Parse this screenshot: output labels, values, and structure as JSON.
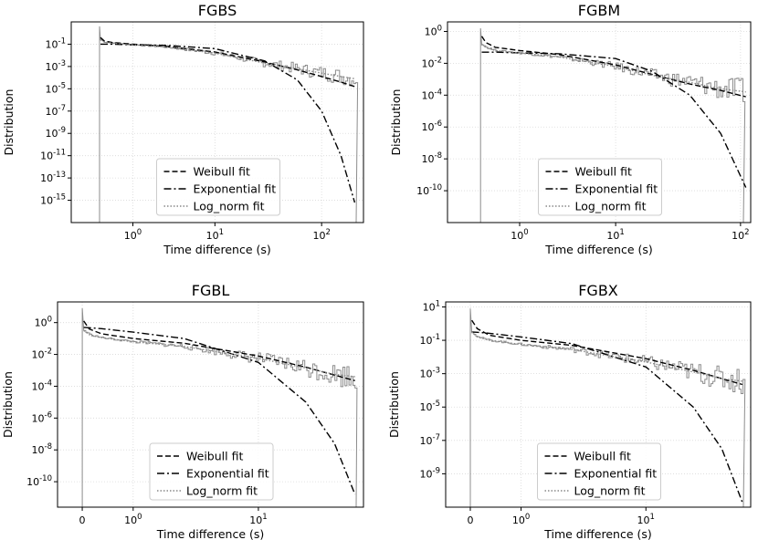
{
  "chart_data": [
    {
      "type": "line",
      "title": "FGBS",
      "xlabel": "Time difference (s)",
      "ylabel": "Distribution",
      "x_scale": "symlog",
      "y_scale": "log",
      "xlim": [
        -0.8,
        240
      ],
      "ylim_exponent": [
        -17,
        1
      ],
      "x_ticks": [
        "10^0",
        "10^1",
        "10^2"
      ],
      "x_tick_values": [
        1,
        10,
        100
      ],
      "y_tick_exponents": [
        -15,
        -13,
        -11,
        -9,
        -7,
        -5,
        -3,
        -1
      ],
      "y_tick_labels": [
        "10^-15",
        "10^-13",
        "10^-11",
        "10^-9",
        "10^-7",
        "10^-5",
        "10^-3",
        "10^-1"
      ],
      "grid": true,
      "legend_position": "lower-center",
      "series": [
        {
          "name": "Weibull fit",
          "style": "dashed",
          "x": [
            0.02,
            0.1,
            0.3,
            1,
            3,
            10,
            30,
            60,
            100,
            150,
            200
          ],
          "log10_y": [
            -0.4,
            -0.7,
            -0.85,
            -1.0,
            -1.2,
            -1.7,
            -2.6,
            -3.3,
            -3.9,
            -4.4,
            -4.8
          ]
        },
        {
          "name": "Exponential fit",
          "style": "dashdot",
          "x": [
            0.02,
            0.1,
            0.3,
            1,
            3,
            10,
            30,
            60,
            100,
            150,
            200
          ],
          "log10_y": [
            -1.0,
            -1.0,
            -1.0,
            -1.05,
            -1.1,
            -1.4,
            -2.5,
            -4.2,
            -7.0,
            -11.0,
            -15.2
          ]
        },
        {
          "name": "Log_norm fit",
          "style": "dotted",
          "x": [
            0.02,
            0.1,
            0.3,
            1,
            3,
            10,
            30,
            60,
            100,
            150,
            200
          ],
          "log10_y": [
            -0.6,
            -0.8,
            -0.9,
            -1.05,
            -1.25,
            -1.8,
            -2.7,
            -3.2,
            -3.6,
            -3.9,
            -4.1
          ]
        }
      ]
    },
    {
      "type": "line",
      "title": "FGBM",
      "xlabel": "Time difference (s)",
      "ylabel": "Distribution",
      "x_scale": "symlog",
      "y_scale": "log",
      "xlim": [
        -0.8,
        120
      ],
      "ylim_exponent": [
        -12,
        0.6
      ],
      "x_ticks": [
        "10^0",
        "10^1",
        "10^2"
      ],
      "x_tick_values": [
        1,
        10,
        100
      ],
      "y_tick_exponents": [
        -10,
        -8,
        -6,
        -4,
        -2,
        0
      ],
      "y_tick_labels": [
        "10^-10",
        "10^-8",
        "10^-6",
        "10^-4",
        "10^-2",
        "10^0"
      ],
      "grid": true,
      "legend_position": "lower-center",
      "series": [
        {
          "name": "Weibull fit",
          "style": "dashed",
          "x": [
            0.02,
            0.1,
            0.3,
            1,
            3,
            10,
            20,
            40,
            70,
            110
          ],
          "log10_y": [
            -0.3,
            -0.7,
            -1.0,
            -1.2,
            -1.45,
            -2.1,
            -2.7,
            -3.3,
            -3.7,
            -4.1
          ]
        },
        {
          "name": "Exponential fit",
          "style": "dashdot",
          "x": [
            0.02,
            0.1,
            0.3,
            1,
            3,
            10,
            20,
            40,
            70,
            110
          ],
          "log10_y": [
            -1.3,
            -1.3,
            -1.3,
            -1.35,
            -1.4,
            -1.7,
            -2.5,
            -4.0,
            -6.4,
            -9.8
          ]
        },
        {
          "name": "Log_norm fit",
          "style": "dotted",
          "x": [
            0.02,
            0.1,
            0.3,
            1,
            3,
            10,
            20,
            40,
            70,
            110
          ],
          "log10_y": [
            -0.8,
            -1.0,
            -1.2,
            -1.35,
            -1.6,
            -2.2,
            -2.75,
            -3.2,
            -3.6,
            -3.8
          ]
        }
      ]
    },
    {
      "type": "line",
      "title": "FGBL",
      "xlabel": "Time difference (s)",
      "ylabel": "Distribution",
      "x_scale": "symlog",
      "y_scale": "log",
      "xlim": [
        -0.4,
        45
      ],
      "ylim_exponent": [
        -11.6,
        1.3
      ],
      "x_ticks": [
        "0",
        "10^0",
        "10^1"
      ],
      "x_tick_values": [
        0,
        1,
        10
      ],
      "y_tick_exponents": [
        -10,
        -8,
        -6,
        -4,
        -2,
        0
      ],
      "y_tick_labels": [
        "10^-10",
        "10^-8",
        "10^-6",
        "10^-4",
        "10^-2",
        "10^0"
      ],
      "grid": true,
      "legend_position": "lower-center",
      "series": [
        {
          "name": "Weibull fit",
          "style": "dashed",
          "x": [
            0.02,
            0.1,
            0.3,
            1,
            3,
            10,
            20,
            30,
            40
          ],
          "log10_y": [
            0.1,
            -0.4,
            -0.7,
            -1.0,
            -1.3,
            -2.1,
            -2.8,
            -3.3,
            -3.65
          ]
        },
        {
          "name": "Exponential fit",
          "style": "dashdot",
          "x": [
            0.02,
            0.1,
            0.3,
            1,
            3,
            10,
            20,
            30,
            40
          ],
          "log10_y": [
            -0.3,
            -0.32,
            -0.38,
            -0.6,
            -1.0,
            -2.5,
            -5.0,
            -7.6,
            -10.8
          ]
        },
        {
          "name": "Log_norm fit",
          "style": "dotted",
          "x": [
            0.02,
            0.1,
            0.3,
            1,
            3,
            10,
            20,
            30,
            40
          ],
          "log10_y": [
            -0.5,
            -0.75,
            -0.95,
            -1.2,
            -1.5,
            -2.25,
            -2.85,
            -3.25,
            -3.4
          ]
        }
      ]
    },
    {
      "type": "line",
      "title": "FGBX",
      "xlabel": "Time difference (s)",
      "ylabel": "Distribution",
      "x_scale": "symlog",
      "y_scale": "log",
      "xlim": [
        -0.4,
        45
      ],
      "ylim_exponent": [
        -11,
        1.3
      ],
      "x_ticks": [
        "0",
        "10^0",
        "10^1"
      ],
      "x_tick_values": [
        0,
        1,
        10
      ],
      "y_tick_exponents": [
        -9,
        -7,
        -5,
        -3,
        -1,
        1
      ],
      "y_tick_labels": [
        "10^-9",
        "10^-7",
        "10^-5",
        "10^-3",
        "10^-1",
        "10^1"
      ],
      "grid": true,
      "legend_position": "lower-center",
      "series": [
        {
          "name": "Weibull fit",
          "style": "dashed",
          "x": [
            0.02,
            0.1,
            0.3,
            1,
            3,
            10,
            20,
            30,
            40
          ],
          "log10_y": [
            0.2,
            -0.3,
            -0.7,
            -1.0,
            -1.3,
            -2.1,
            -2.8,
            -3.3,
            -3.65
          ]
        },
        {
          "name": "Exponential fit",
          "style": "dashdot",
          "x": [
            0.02,
            0.1,
            0.3,
            1,
            3,
            10,
            20,
            30,
            40
          ],
          "log10_y": [
            -0.5,
            -0.52,
            -0.58,
            -0.8,
            -1.2,
            -2.6,
            -5.0,
            -7.5,
            -10.7
          ]
        },
        {
          "name": "Log_norm fit",
          "style": "dotted",
          "x": [
            0.02,
            0.1,
            0.3,
            1,
            3,
            10,
            20,
            30,
            40
          ],
          "log10_y": [
            -0.5,
            -0.8,
            -1.0,
            -1.25,
            -1.55,
            -2.3,
            -2.9,
            -3.3,
            -3.45
          ]
        }
      ]
    }
  ],
  "colors": {
    "weibull": "#000000",
    "exponential": "#000000",
    "log_norm": "#888888",
    "histogram": "#8c8c8c",
    "grid": "#d9d9d9"
  }
}
